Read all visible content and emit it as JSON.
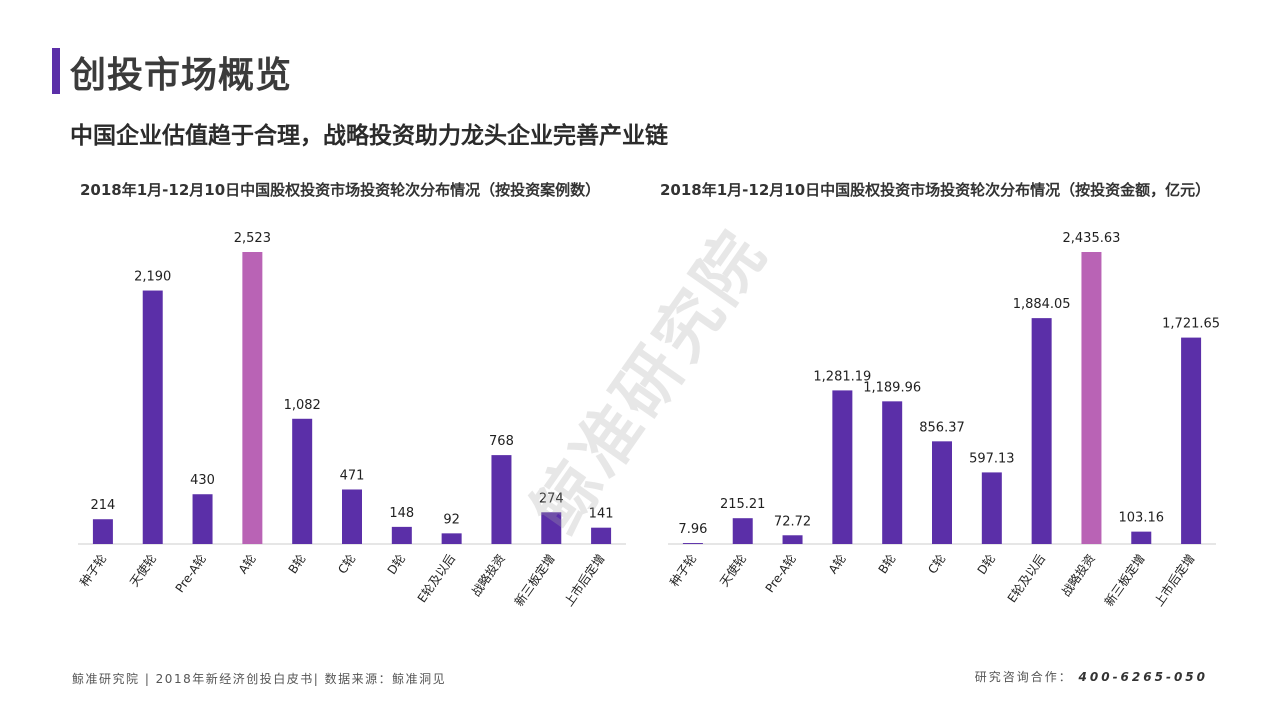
{
  "header": {
    "title": "创投市场概览",
    "subtitle": "中国企业估值趋于合理，战略投资助力龙头企业完善产业链"
  },
  "watermark": "鲸准研究院",
  "footer": {
    "left": "鲸准研究院 | 2018年新经济创投白皮书| 数据来源：鲸准洞见",
    "contact_label": "研究咨询合作：",
    "phone": "400-6265-050"
  },
  "colors": {
    "bar": "#5b2fa8",
    "highlight": "#b963b5",
    "accent": "#5b2fa8",
    "axis": "#cccccc"
  },
  "chart_data": [
    {
      "type": "bar",
      "title": "2018年1月-12月10日中国股权投资市场投资轮次分布情况（按投资案例数）",
      "categories": [
        "种子轮",
        "天使轮",
        "Pre-A轮",
        "A轮",
        "B轮",
        "C轮",
        "D轮",
        "E轮及以后",
        "战略投资",
        "新三板定增",
        "上市后定增"
      ],
      "values": [
        214,
        2190,
        430,
        2523,
        1082,
        471,
        148,
        92,
        768,
        274,
        141
      ],
      "value_labels": [
        "214",
        "2,190",
        "430",
        "2,523",
        "1,082",
        "471",
        "148",
        "92",
        "768",
        "274",
        "141"
      ],
      "highlight": [
        "A轮"
      ],
      "ylim": [
        0,
        2523
      ]
    },
    {
      "type": "bar",
      "title": "2018年1月-12月10日中国股权投资市场投资轮次分布情况（按投资金额，亿元）",
      "categories": [
        "种子轮",
        "天使轮",
        "Pre-A轮",
        "A轮",
        "B轮",
        "C轮",
        "D轮",
        "E轮及以后",
        "战略投资",
        "新三板定增",
        "上市后定增"
      ],
      "values": [
        7.96,
        215.21,
        72.72,
        1281.19,
        1189.96,
        856.37,
        597.13,
        1884.05,
        2435.63,
        103.16,
        1721.65
      ],
      "value_labels": [
        "7.96",
        "215.21",
        "72.72",
        "1,281.19",
        "1,189.96",
        "856.37",
        "597.13",
        "1,884.05",
        "2,435.63",
        "103.16",
        "1,721.65"
      ],
      "highlight": [
        "战略投资"
      ],
      "ylim": [
        0,
        2435.63
      ]
    }
  ]
}
